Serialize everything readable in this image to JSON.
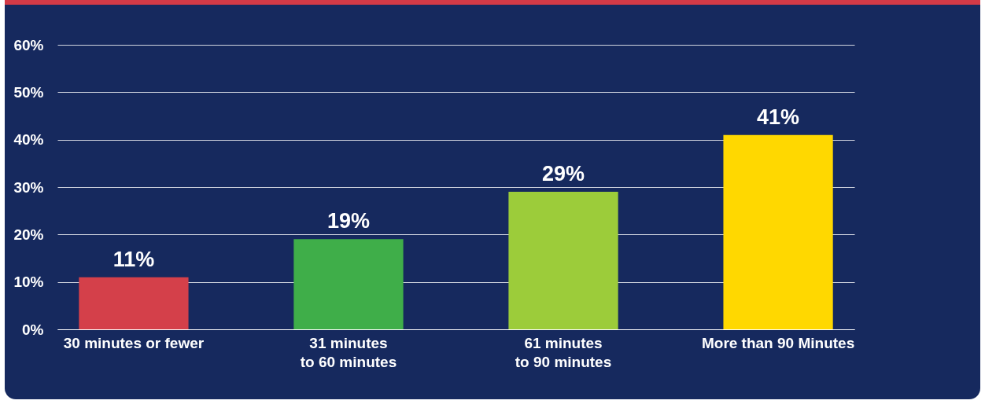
{
  "chart_data": {
    "type": "bar",
    "categories": [
      "30 minutes or fewer",
      "31 minutes to 60 minutes",
      "61 minutes to 90 minutes",
      "More than 90 Minutes"
    ],
    "values": [
      11,
      19,
      29,
      41
    ],
    "colors": [
      "#d4404a",
      "#3fae49",
      "#9ccc3a",
      "#ffd800"
    ],
    "value_labels": [
      "11%",
      "19%",
      "29%",
      "41%"
    ],
    "ylim": [
      0,
      60
    ],
    "yticks": [
      {
        "value": 0,
        "label": "0%"
      },
      {
        "value": 10,
        "label": "10%"
      },
      {
        "value": 20,
        "label": "20%"
      },
      {
        "value": 30,
        "label": "30%"
      },
      {
        "value": 40,
        "label": "40%"
      },
      {
        "value": 50,
        "label": "50%"
      },
      {
        "value": 60,
        "label": "60%"
      }
    ],
    "grid": "y"
  }
}
